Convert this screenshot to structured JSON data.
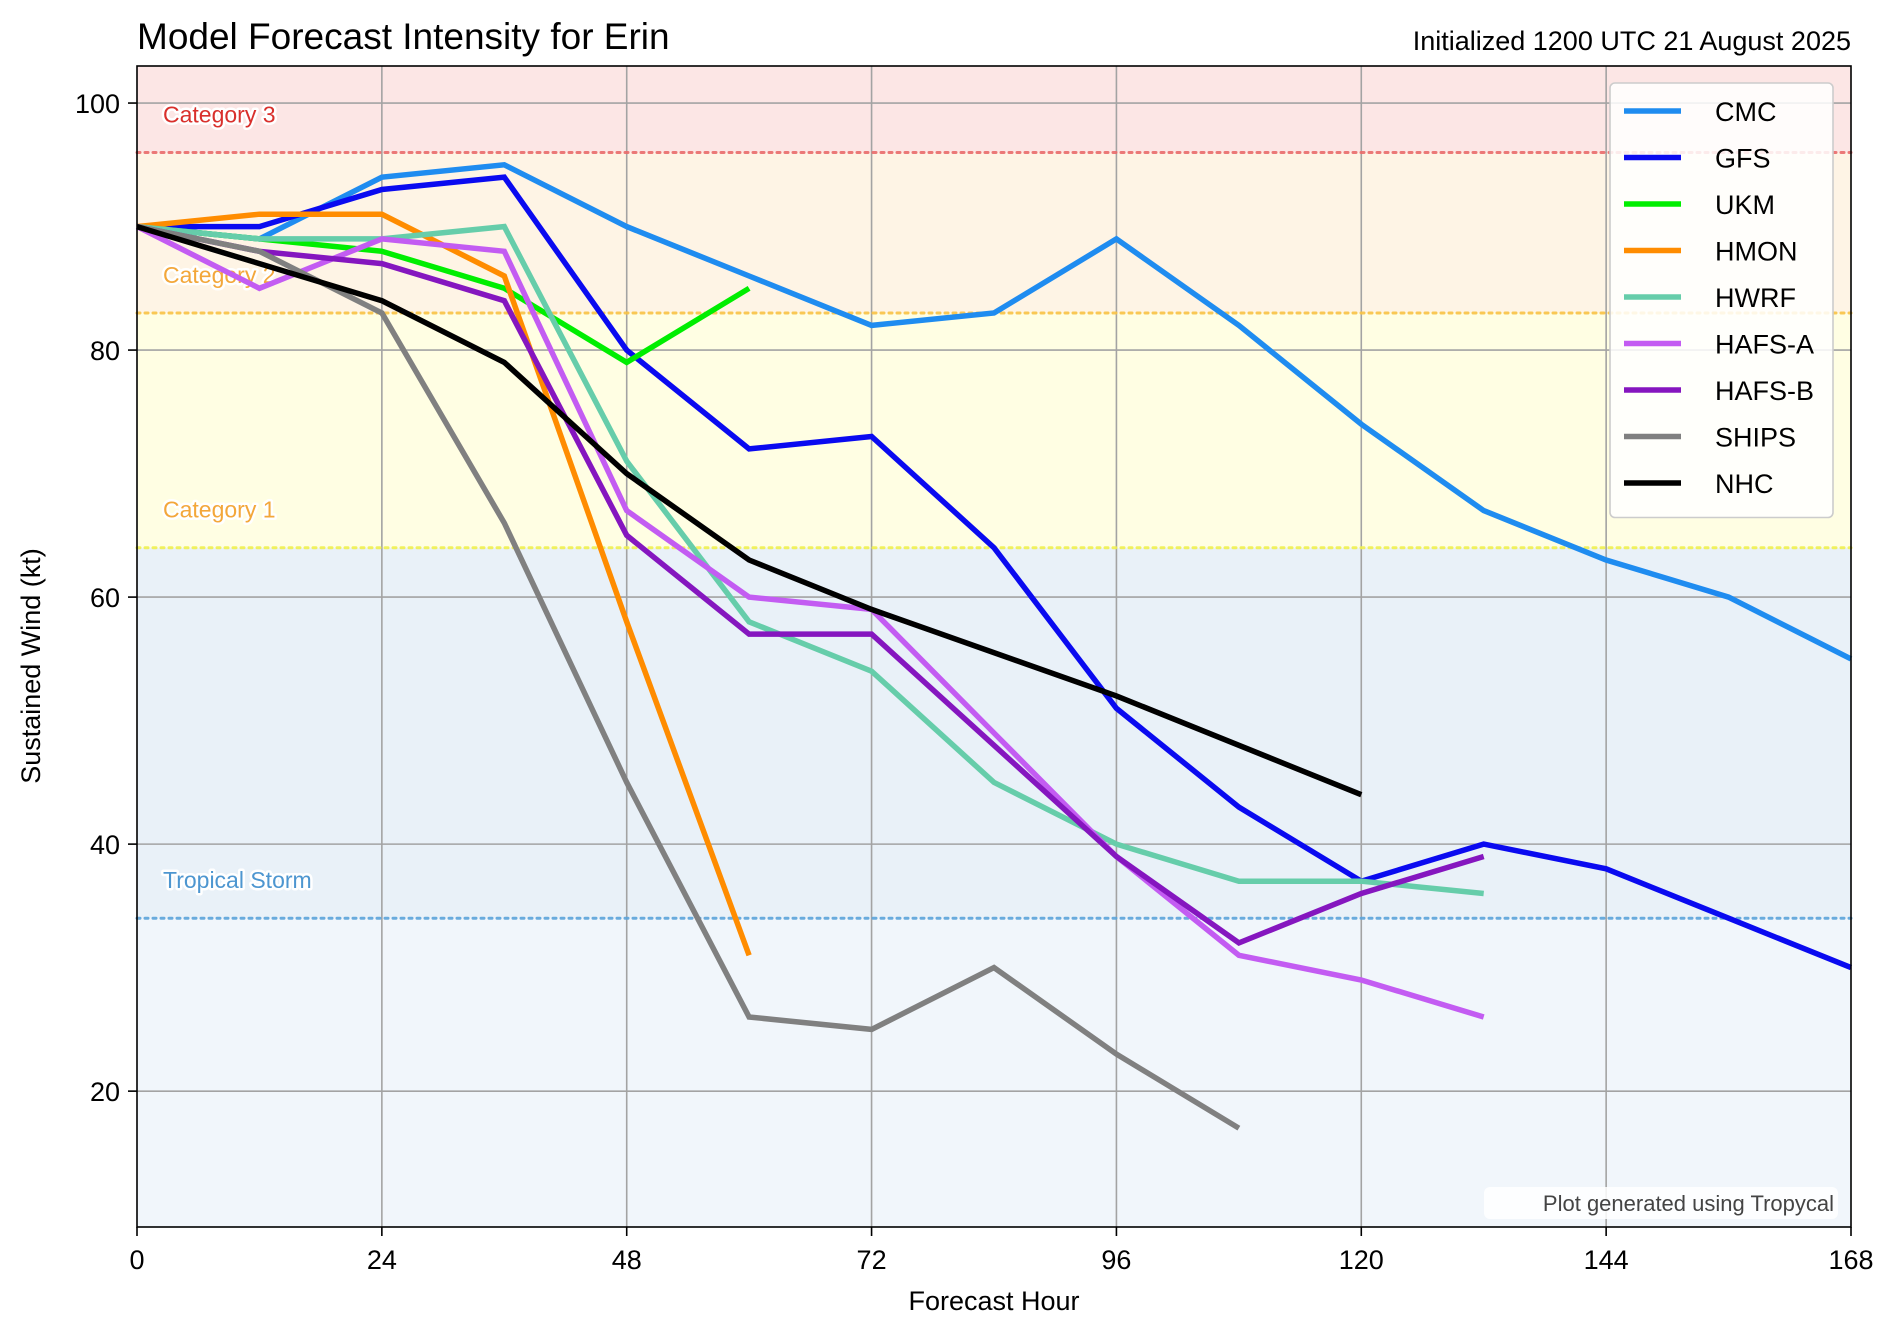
{
  "chart_data": {
    "type": "line",
    "title": "Model Forecast Intensity for Erin",
    "subtitle": "Initialized 1200 UTC 21 August 2025",
    "xlabel": "Forecast Hour",
    "ylabel": "Sustained Wind (kt)",
    "xlim": [
      0,
      168
    ],
    "ylim": [
      9,
      103
    ],
    "xticks": [
      0,
      24,
      48,
      72,
      96,
      120,
      144,
      168
    ],
    "yticks": [
      20,
      40,
      60,
      80,
      100
    ],
    "grid": true,
    "legend_position": "top-right",
    "credit": "Plot generated using Tropycal",
    "bands": [
      {
        "name": "below-ts",
        "from": 9,
        "to": 34,
        "color": "#f1f6fb"
      },
      {
        "name": "tropical-storm",
        "from": 34,
        "to": 64,
        "color": "#e9f1f8"
      },
      {
        "name": "cat1",
        "from": 64,
        "to": 83,
        "color": "#fffee3"
      },
      {
        "name": "cat2",
        "from": 83,
        "to": 96,
        "color": "#fef4e5"
      },
      {
        "name": "cat3",
        "from": 96,
        "to": 103,
        "color": "#fce6e5"
      }
    ],
    "thresholds": [
      {
        "label": "Tropical Storm",
        "value": 34,
        "color": "#5ba3d9",
        "text_color": "#4d96d0"
      },
      {
        "label": "Category 1",
        "value": 64,
        "color": "#f0ef4e",
        "text_color": "#f3a73a"
      },
      {
        "label": "Category 2",
        "value": 83,
        "color": "#f8c244",
        "text_color": "#f3a73a"
      },
      {
        "label": "Category 3",
        "value": 96,
        "color": "#e96a6a",
        "text_color": "#d9302c"
      }
    ],
    "series": [
      {
        "name": "CMC",
        "color": "#1f8cf0",
        "x": [
          0,
          12,
          24,
          36,
          48,
          60,
          72,
          84,
          96,
          108,
          120,
          132,
          144,
          156,
          168
        ],
        "values": [
          90,
          89,
          94,
          95,
          90,
          86,
          82,
          83,
          89,
          82,
          74,
          67,
          63,
          60,
          55
        ]
      },
      {
        "name": "GFS",
        "color": "#0a0af0",
        "x": [
          0,
          12,
          24,
          36,
          48,
          60,
          72,
          84,
          96,
          108,
          120,
          132,
          144,
          156,
          168
        ],
        "values": [
          90,
          90,
          93,
          94,
          80,
          72,
          73,
          64,
          51,
          43,
          37,
          40,
          38,
          34,
          30
        ]
      },
      {
        "name": "UKM",
        "color": "#00ee00",
        "x": [
          0,
          12,
          24,
          36,
          48,
          60
        ],
        "values": [
          90,
          89,
          88,
          85,
          79,
          85
        ]
      },
      {
        "name": "HMON",
        "color": "#ff8c00",
        "x": [
          0,
          12,
          24,
          36,
          48,
          60
        ],
        "values": [
          90,
          91,
          91,
          86,
          58,
          31
        ]
      },
      {
        "name": "HWRF",
        "color": "#66cdaa",
        "x": [
          0,
          12,
          24,
          36,
          48,
          60,
          72,
          84,
          96,
          108,
          120,
          132
        ],
        "values": [
          90,
          89,
          89,
          90,
          71,
          58,
          54,
          45,
          40,
          37,
          37,
          36
        ]
      },
      {
        "name": "HAFS-A",
        "color": "#c35cf2",
        "x": [
          0,
          12,
          24,
          36,
          48,
          60,
          72,
          84,
          96,
          108,
          120,
          132
        ],
        "values": [
          90,
          85,
          89,
          88,
          67,
          60,
          59,
          49,
          39,
          31,
          29,
          26
        ]
      },
      {
        "name": "HAFS-B",
        "color": "#8516bf",
        "x": [
          0,
          12,
          24,
          36,
          48,
          60,
          72,
          84,
          96,
          108,
          120,
          132
        ],
        "values": [
          90,
          88,
          87,
          84,
          65,
          57,
          57,
          48,
          39,
          32,
          36,
          39
        ]
      },
      {
        "name": "SHIPS",
        "color": "#808080",
        "x": [
          0,
          12,
          24,
          36,
          48,
          60,
          72,
          84,
          96,
          108
        ],
        "values": [
          90,
          88,
          83,
          66,
          45,
          26,
          25,
          30,
          23,
          17
        ]
      },
      {
        "name": "NHC",
        "color": "#000000",
        "x": [
          0,
          12,
          24,
          36,
          48,
          60,
          72,
          96,
          120
        ],
        "values": [
          90,
          87,
          84,
          79,
          70,
          63,
          59,
          52,
          44
        ]
      }
    ]
  }
}
